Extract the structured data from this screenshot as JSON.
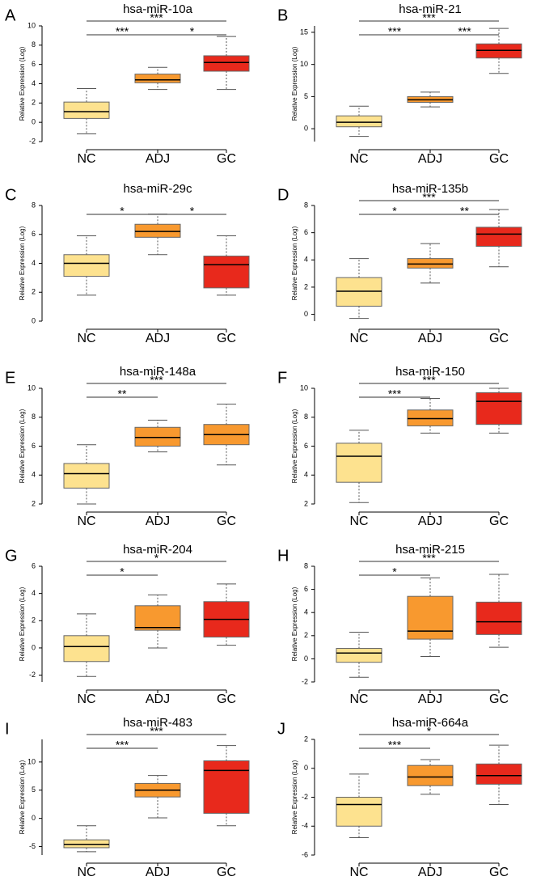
{
  "chart_data": [
    {
      "type": "box",
      "label": "A",
      "title": "hsa-miR-10a",
      "y_label": "Relative Expression (Log)",
      "categories": [
        "NC",
        "ADJ",
        "GC"
      ],
      "colors": [
        "#fde28f",
        "#f8992f",
        "#e8291c"
      ],
      "low": [
        -1.2,
        3.4,
        3.4
      ],
      "q1": [
        0.4,
        4.1,
        5.3
      ],
      "median": [
        1.1,
        4.4,
        6.2
      ],
      "q3": [
        2.1,
        5.0,
        6.9
      ],
      "high": [
        3.5,
        5.7,
        8.9
      ],
      "ylim": [
        -2,
        10
      ],
      "yticks": [
        -2,
        0,
        2,
        4,
        6,
        8,
        10
      ],
      "brackets": [
        {
          "from": "NC",
          "to": "ADJ",
          "label": "***"
        },
        {
          "from": "ADJ",
          "to": "GC",
          "label": "*"
        },
        {
          "from": "NC",
          "to": "GC",
          "label": "***"
        }
      ]
    },
    {
      "type": "box",
      "label": "B",
      "title": "hsa-miR-21",
      "y_label": "Relative Expression (Log)",
      "categories": [
        "NC",
        "ADJ",
        "GC"
      ],
      "colors": [
        "#fde28f",
        "#f8992f",
        "#e8291c"
      ],
      "low": [
        -1.2,
        3.4,
        8.6
      ],
      "q1": [
        0.3,
        4.1,
        11.0
      ],
      "median": [
        1.0,
        4.5,
        12.2
      ],
      "q3": [
        2.0,
        5.0,
        13.2
      ],
      "high": [
        3.5,
        5.7,
        15.6
      ],
      "ylim": [
        -2,
        16
      ],
      "yticks": [
        0,
        5,
        10,
        15
      ],
      "brackets": [
        {
          "from": "NC",
          "to": "ADJ",
          "label": "***"
        },
        {
          "from": "ADJ",
          "to": "GC",
          "label": "***"
        },
        {
          "from": "NC",
          "to": "GC",
          "label": "***"
        }
      ]
    },
    {
      "type": "box",
      "label": "C",
      "title": "hsa-miR-29c",
      "y_label": "Relative Expression (Log)",
      "categories": [
        "NC",
        "ADJ",
        "GC"
      ],
      "colors": [
        "#fde28f",
        "#f8992f",
        "#e8291c"
      ],
      "low": [
        1.8,
        4.6,
        1.8
      ],
      "q1": [
        3.1,
        5.8,
        2.3
      ],
      "median": [
        4.0,
        6.2,
        3.9
      ],
      "q3": [
        4.6,
        6.7,
        4.5
      ],
      "high": [
        5.9,
        7.4,
        5.9
      ],
      "ylim": [
        0,
        8
      ],
      "yticks": [
        0,
        2,
        4,
        6,
        8
      ],
      "brackets": [
        {
          "from": "NC",
          "to": "ADJ",
          "label": "*"
        },
        {
          "from": "ADJ",
          "to": "GC",
          "label": "*"
        }
      ]
    },
    {
      "type": "box",
      "label": "D",
      "title": "hsa-miR-135b",
      "y_label": "Relative Expression (Log)",
      "categories": [
        "NC",
        "ADJ",
        "GC"
      ],
      "colors": [
        "#fde28f",
        "#f8992f",
        "#e8291c"
      ],
      "low": [
        -0.3,
        2.3,
        3.5
      ],
      "q1": [
        0.6,
        3.4,
        5.0
      ],
      "median": [
        1.7,
        3.7,
        5.9
      ],
      "q3": [
        2.7,
        4.1,
        6.4
      ],
      "high": [
        4.1,
        5.2,
        7.7
      ],
      "ylim": [
        -0.5,
        8
      ],
      "yticks": [
        0,
        2,
        4,
        6,
        8
      ],
      "brackets": [
        {
          "from": "NC",
          "to": "ADJ",
          "label": "*"
        },
        {
          "from": "ADJ",
          "to": "GC",
          "label": "**"
        },
        {
          "from": "NC",
          "to": "GC",
          "label": "***"
        }
      ]
    },
    {
      "type": "box",
      "label": "E",
      "title": "hsa-miR-148a",
      "y_label": "Relative Expression (Log)",
      "categories": [
        "NC",
        "ADJ",
        "GC"
      ],
      "colors": [
        "#fde28f",
        "#f8992f",
        "#f8992f"
      ],
      "low": [
        2.0,
        5.6,
        4.7
      ],
      "q1": [
        3.1,
        6.0,
        6.1
      ],
      "median": [
        4.1,
        6.6,
        6.8
      ],
      "q3": [
        4.8,
        7.3,
        7.5
      ],
      "high": [
        6.1,
        7.8,
        8.9
      ],
      "ylim": [
        2,
        10
      ],
      "yticks": [
        2,
        4,
        6,
        8,
        10
      ],
      "brackets": [
        {
          "from": "NC",
          "to": "ADJ",
          "label": "**"
        },
        {
          "from": "NC",
          "to": "GC",
          "label": "***"
        }
      ]
    },
    {
      "type": "box",
      "label": "F",
      "title": "hsa-miR-150",
      "y_label": "Relative Expression (Log)",
      "categories": [
        "NC",
        "ADJ",
        "GC"
      ],
      "colors": [
        "#fde28f",
        "#f8992f",
        "#e8291c"
      ],
      "low": [
        2.1,
        6.9,
        6.9
      ],
      "q1": [
        3.5,
        7.4,
        7.5
      ],
      "median": [
        5.3,
        7.9,
        9.1
      ],
      "q3": [
        6.2,
        8.5,
        9.7
      ],
      "high": [
        7.1,
        9.3,
        10.0
      ],
      "ylim": [
        2,
        10
      ],
      "yticks": [
        2,
        4,
        6,
        8,
        10
      ],
      "brackets": [
        {
          "from": "NC",
          "to": "ADJ",
          "label": "***"
        },
        {
          "from": "NC",
          "to": "GC",
          "label": "***"
        }
      ]
    },
    {
      "type": "box",
      "label": "G",
      "title": "hsa-miR-204",
      "y_label": "Relative Expression (Log)",
      "categories": [
        "NC",
        "ADJ",
        "GC"
      ],
      "colors": [
        "#fde28f",
        "#f8992f",
        "#e8291c"
      ],
      "low": [
        -2.1,
        0.0,
        0.2
      ],
      "q1": [
        -1.0,
        1.3,
        0.8
      ],
      "median": [
        0.1,
        1.5,
        2.1
      ],
      "q3": [
        0.9,
        3.1,
        3.4
      ],
      "high": [
        2.5,
        3.9,
        4.7
      ],
      "ylim": [
        -2.5,
        6
      ],
      "yticks": [
        -2,
        0,
        2,
        4,
        6
      ],
      "brackets": [
        {
          "from": "NC",
          "to": "ADJ",
          "label": "*"
        },
        {
          "from": "NC",
          "to": "GC",
          "label": "*"
        }
      ]
    },
    {
      "type": "box",
      "label": "H",
      "title": "hsa-miR-215",
      "y_label": "Relative Expression (Log)",
      "categories": [
        "NC",
        "ADJ",
        "GC"
      ],
      "colors": [
        "#fde28f",
        "#f8992f",
        "#e8291c"
      ],
      "low": [
        -1.6,
        0.2,
        1.0
      ],
      "q1": [
        -0.3,
        1.7,
        2.1
      ],
      "median": [
        0.5,
        2.4,
        3.2
      ],
      "q3": [
        0.9,
        5.4,
        4.9
      ],
      "high": [
        2.3,
        7.0,
        7.3
      ],
      "ylim": [
        -2,
        8
      ],
      "yticks": [
        -2,
        0,
        2,
        4,
        6,
        8
      ],
      "brackets": [
        {
          "from": "NC",
          "to": "ADJ",
          "label": "*"
        },
        {
          "from": "NC",
          "to": "GC",
          "label": "***"
        }
      ]
    },
    {
      "type": "box",
      "label": "I",
      "title": "hsa-miR-483",
      "y_label": "Relative Expression (Log)",
      "categories": [
        "NC",
        "ADJ",
        "GC"
      ],
      "colors": [
        "#fde28f",
        "#f8992f",
        "#e8291c"
      ],
      "low": [
        -5.9,
        0.1,
        -1.3
      ],
      "q1": [
        -5.2,
        3.8,
        0.9
      ],
      "median": [
        -4.6,
        5.0,
        8.5
      ],
      "q3": [
        -3.8,
        6.2,
        10.2
      ],
      "high": [
        -1.3,
        7.6,
        12.9
      ],
      "ylim": [
        -6.5,
        14
      ],
      "yticks": [
        -5,
        0,
        5,
        10
      ],
      "brackets": [
        {
          "from": "NC",
          "to": "ADJ",
          "label": "***"
        },
        {
          "from": "NC",
          "to": "GC",
          "label": "***"
        }
      ]
    },
    {
      "type": "box",
      "label": "J",
      "title": "hsa-miR-664a",
      "y_label": "Relative Expression (Log)",
      "categories": [
        "NC",
        "ADJ",
        "GC"
      ],
      "colors": [
        "#fde28f",
        "#f8992f",
        "#e8291c"
      ],
      "low": [
        -4.8,
        -1.8,
        -2.5
      ],
      "q1": [
        -4.0,
        -1.2,
        -1.1
      ],
      "median": [
        -2.5,
        -0.6,
        -0.5
      ],
      "q3": [
        -2.0,
        0.2,
        0.3
      ],
      "high": [
        -0.4,
        0.6,
        1.6
      ],
      "ylim": [
        -6,
        2
      ],
      "yticks": [
        -6,
        -4,
        -2,
        0,
        2
      ],
      "brackets": [
        {
          "from": "NC",
          "to": "ADJ",
          "label": "***"
        },
        {
          "from": "NC",
          "to": "GC",
          "label": "*"
        }
      ]
    }
  ]
}
